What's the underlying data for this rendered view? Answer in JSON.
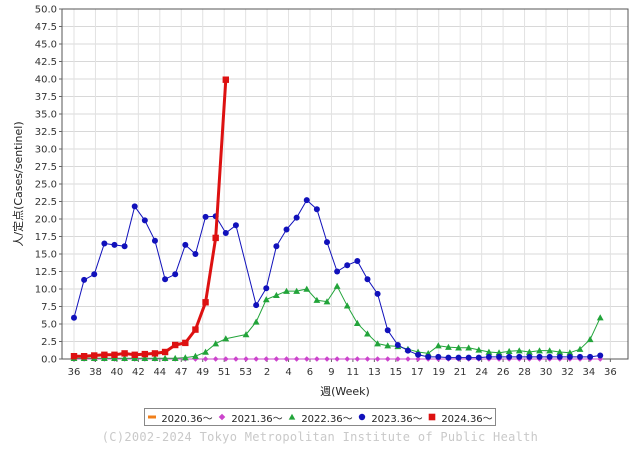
{
  "chart_data": {
    "type": "line",
    "title": "",
    "xlabel": "週(Week)",
    "ylabel": "人/定点(Cases/sentinel)",
    "ylim": [
      0,
      50
    ],
    "ytick_step": 2.5,
    "yticks": [
      "0.0",
      "2.5",
      "5.0",
      "7.5",
      "10.0",
      "12.5",
      "15.0",
      "17.5",
      "20.0",
      "22.5",
      "25.0",
      "27.5",
      "30.0",
      "32.5",
      "35.0",
      "37.5",
      "40.0",
      "42.5",
      "45.0",
      "47.5",
      "50.0"
    ],
    "xticks": [
      "36",
      "38",
      "40",
      "42",
      "44",
      "47",
      "49",
      "51",
      "53",
      "2",
      "4",
      "6",
      "9",
      "11",
      "13",
      "15",
      "17",
      "19",
      "21",
      "24",
      "26",
      "28",
      "30",
      "32",
      "34",
      "36"
    ],
    "grid": true,
    "legend_position": "bottom",
    "series": [
      {
        "name": "2020.36～",
        "color": "#f07f1a",
        "marker": "dash",
        "values": []
      },
      {
        "name": "2021.36～",
        "color": "#cc44cc",
        "marker": "diamond",
        "values": [
          0,
          0,
          0,
          0,
          0,
          0,
          0,
          0,
          0,
          0,
          0,
          0,
          0,
          0,
          0,
          0,
          0,
          0,
          0,
          0,
          0,
          0,
          0,
          0,
          0,
          0,
          0,
          0,
          0,
          0,
          0,
          0,
          0,
          0,
          0,
          0,
          0,
          0,
          0,
          0,
          0,
          0,
          0,
          0,
          0,
          0,
          0,
          0,
          0,
          0,
          0,
          0,
          0
        ]
      },
      {
        "name": "2022.36～",
        "color": "#22a43a",
        "marker": "triangle",
        "values": [
          0.1,
          0.1,
          0.1,
          0.1,
          0.1,
          0.1,
          0.1,
          0.1,
          0.1,
          0.1,
          0.1,
          0.2,
          0.4,
          1.0,
          2.2,
          2.9,
          null,
          3.5,
          5.3,
          8.5,
          9.1,
          9.7,
          9.7,
          10.0,
          8.4,
          8.2,
          10.4,
          7.6,
          5.1,
          3.6,
          2.2,
          1.9,
          1.8,
          1.4,
          1.0,
          0.8,
          1.9,
          1.7,
          1.6,
          1.6,
          1.3,
          1.0,
          0.9,
          1.1,
          1.2,
          1.0,
          1.2,
          1.2,
          1.0,
          0.9,
          1.4,
          2.8,
          5.9
        ]
      },
      {
        "name": "2023.36～",
        "color": "#1111bb",
        "marker": "circle",
        "values": [
          5.9,
          11.3,
          12.1,
          16.5,
          16.3,
          16.1,
          21.8,
          19.8,
          16.9,
          11.4,
          12.1,
          16.3,
          15.0,
          20.3,
          20.4,
          18.0,
          19.1,
          null,
          7.7,
          10.1,
          16.1,
          18.5,
          20.2,
          22.7,
          21.4,
          16.7,
          12.5,
          13.4,
          14.0,
          11.4,
          9.3,
          4.1,
          2.0,
          1.2,
          0.6,
          0.3,
          0.3,
          0.2,
          0.2,
          0.2,
          0.2,
          0.3,
          0.3,
          0.3,
          0.3,
          0.3,
          0.3,
          0.3,
          0.3,
          0.3,
          0.3,
          0.3,
          0.5
        ]
      },
      {
        "name": "2024.36～",
        "color": "#dd1111",
        "marker": "square",
        "values": [
          0.4,
          0.4,
          0.5,
          0.6,
          0.6,
          0.8,
          0.6,
          0.7,
          0.8,
          1.0,
          2.0,
          2.3,
          4.2,
          8.1,
          17.3,
          39.9
        ]
      }
    ]
  },
  "copyright": "(C)2002-2024 Tokyo Metropolitan Institute of Public Health"
}
